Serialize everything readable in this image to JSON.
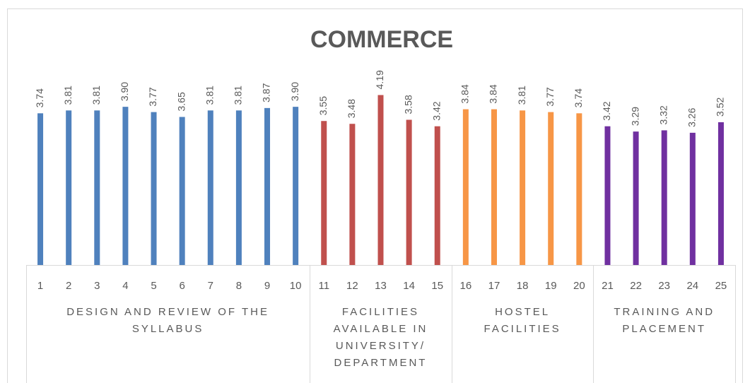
{
  "chart_data": {
    "type": "bar",
    "title": "COMMERCE",
    "ylim": [
      0,
      5
    ],
    "series": [
      {
        "name": "DESIGN AND REVIEW OF THE SYLLABUS",
        "color": "#4f81bd",
        "categories": [
          "1",
          "2",
          "3",
          "4",
          "5",
          "6",
          "7",
          "8",
          "9",
          "10"
        ],
        "values": [
          3.74,
          3.81,
          3.81,
          3.9,
          3.77,
          3.65,
          3.81,
          3.81,
          3.87,
          3.9
        ],
        "value_labels": [
          "3.74",
          "3.81",
          "3.81",
          "3.90",
          "3.77",
          "3.65",
          "3.81",
          "3.81",
          "3.87",
          "3.90"
        ]
      },
      {
        "name": "FACILITIES AVAILABLE IN UNIVERSITY/ DEPARTMENT",
        "color": "#c0504d",
        "categories": [
          "11",
          "12",
          "13",
          "14",
          "15"
        ],
        "values": [
          3.55,
          3.48,
          4.19,
          3.58,
          3.42
        ],
        "value_labels": [
          "3.55",
          "3.48",
          "4.19",
          "3.58",
          "3.42"
        ]
      },
      {
        "name": "HOSTEL FACILITIES",
        "color": "#f79646",
        "categories": [
          "16",
          "17",
          "18",
          "19",
          "20"
        ],
        "values": [
          3.84,
          3.84,
          3.81,
          3.77,
          3.74
        ],
        "value_labels": [
          "3.84",
          "3.84",
          "3.81",
          "3.77",
          "3.74"
        ]
      },
      {
        "name": "TRAINING AND PLACEMENT",
        "color": "#7030a0",
        "categories": [
          "21",
          "22",
          "23",
          "24",
          "25"
        ],
        "values": [
          3.42,
          3.29,
          3.32,
          3.26,
          3.52
        ],
        "value_labels": [
          "3.42",
          "3.29",
          "3.32",
          "3.26",
          "3.52"
        ]
      }
    ]
  }
}
